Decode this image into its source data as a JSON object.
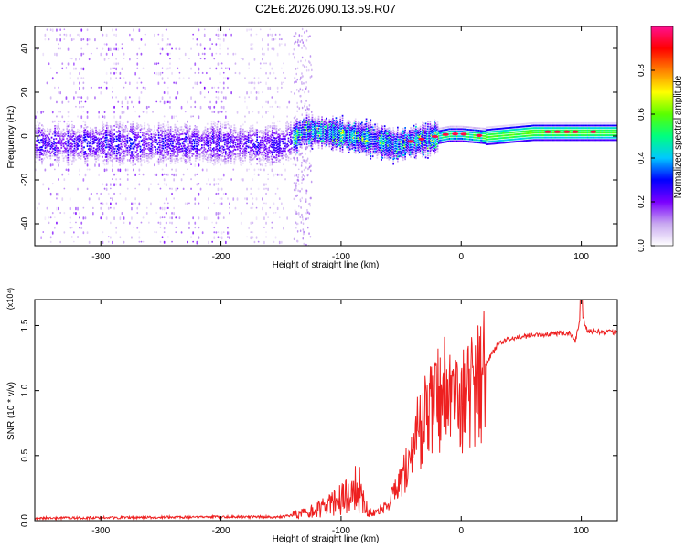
{
  "title": "C2E6.2026.090.13.59.R07",
  "chart_data": [
    {
      "type": "heatmap",
      "name": "spectrogram",
      "xlabel": "Height of straight line (km)",
      "ylabel": "Frequency (Hz)",
      "xlim": [
        -355,
        130
      ],
      "ylim": [
        -50,
        50
      ],
      "xticks": [
        -300,
        -200,
        -100,
        0,
        100
      ],
      "yticks": [
        -40,
        -20,
        0,
        20,
        40
      ],
      "colorbar": {
        "label": "Normalized spectral amplitude",
        "range": [
          0,
          1
        ],
        "ticks": [
          "0.0",
          "0.2",
          "0.4",
          "0.6",
          "0.8"
        ],
        "tick_values": [
          0,
          0.2,
          0.4,
          0.6,
          0.8
        ],
        "colors": [
          "#ffffff",
          "#c8a8f0",
          "#7a00ff",
          "#0000ff",
          "#00c8ff",
          "#00ff7f",
          "#5aff00",
          "#ffff00",
          "#ff8000",
          "#ff0000",
          "#ff1090"
        ]
      },
      "features": {
        "noise_extent_km": [
          -355,
          -135
        ],
        "trace_center_hz": [
          {
            "x": -300,
            "y": -3
          },
          {
            "x": -200,
            "y": -3
          },
          {
            "x": -150,
            "y": -4
          },
          {
            "x": -130,
            "y": 3
          },
          {
            "x": -100,
            "y": 1
          },
          {
            "x": -75,
            "y": -1
          },
          {
            "x": -55,
            "y": -4
          },
          {
            "x": -30,
            "y": -1
          },
          {
            "x": -10,
            "y": 1
          },
          {
            "x": 0,
            "y": 1
          },
          {
            "x": 20,
            "y": 0
          },
          {
            "x": 60,
            "y": 2
          },
          {
            "x": 130,
            "y": 2
          }
        ]
      }
    },
    {
      "type": "line",
      "name": "snr",
      "xlabel": "Height of straight line (km)",
      "ylabel": "SNR (10 * v/v)",
      "scale_label": "(x10⁴)",
      "xlim": [
        -355,
        130
      ],
      "ylim": [
        0,
        1.7
      ],
      "xticks": [
        -300,
        -200,
        -100,
        0,
        100
      ],
      "yticks": [
        "0.0",
        "0.5",
        "1.0",
        "1.5"
      ],
      "ytick_values": [
        0,
        0.5,
        1.0,
        1.5
      ],
      "color": "#ee2020",
      "envelope": [
        {
          "x": -355,
          "y": 0.02
        },
        {
          "x": -200,
          "y": 0.03
        },
        {
          "x": -150,
          "y": 0.03
        },
        {
          "x": -130,
          "y": 0.06
        },
        {
          "x": -110,
          "y": 0.12
        },
        {
          "x": -95,
          "y": 0.2
        },
        {
          "x": -85,
          "y": 0.2
        },
        {
          "x": -75,
          "y": 0.05
        },
        {
          "x": -60,
          "y": 0.14
        },
        {
          "x": -45,
          "y": 0.42
        },
        {
          "x": -35,
          "y": 0.75
        },
        {
          "x": -20,
          "y": 0.95
        },
        {
          "x": -10,
          "y": 1.1
        },
        {
          "x": 0,
          "y": 0.95
        },
        {
          "x": 10,
          "y": 1.05
        },
        {
          "x": 20,
          "y": 1.2
        },
        {
          "x": 30,
          "y": 1.35
        },
        {
          "x": 40,
          "y": 1.4
        },
        {
          "x": 60,
          "y": 1.43
        },
        {
          "x": 90,
          "y": 1.45
        },
        {
          "x": 95,
          "y": 1.38
        },
        {
          "x": 100,
          "y": 1.6
        },
        {
          "x": 105,
          "y": 1.46
        },
        {
          "x": 130,
          "y": 1.45
        }
      ],
      "peak": {
        "x": 100,
        "y": 1.7
      }
    }
  ]
}
